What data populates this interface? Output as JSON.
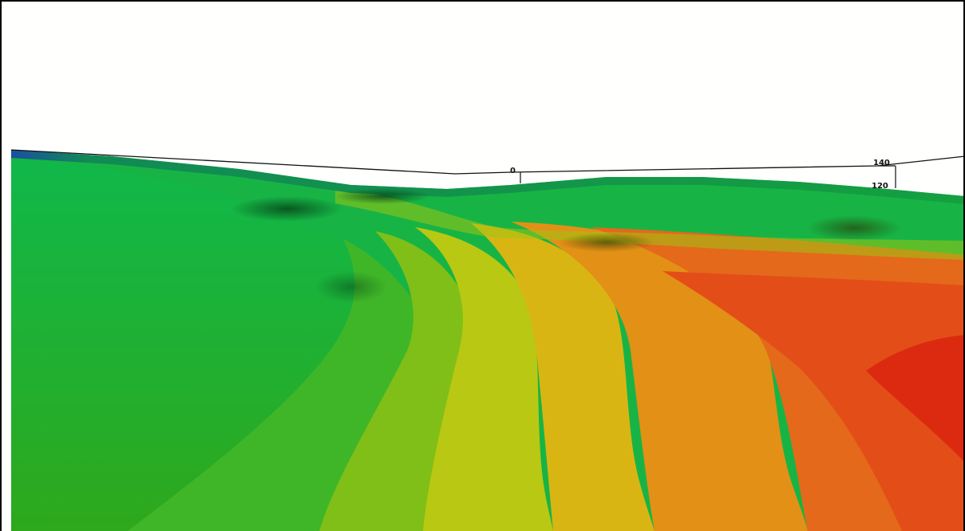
{
  "scene": {
    "background_color": "#fffffe",
    "color_ramp": [
      "#0a8a3a",
      "#16b340",
      "#3fba24",
      "#8cc217",
      "#c7cc12",
      "#e0a312",
      "#e8741a",
      "#e6501a",
      "#dd2a10"
    ]
  },
  "axis": {
    "tick_label_mid": "0",
    "tick_label_right_top": "140",
    "tick_label_right_bottom": "120"
  }
}
